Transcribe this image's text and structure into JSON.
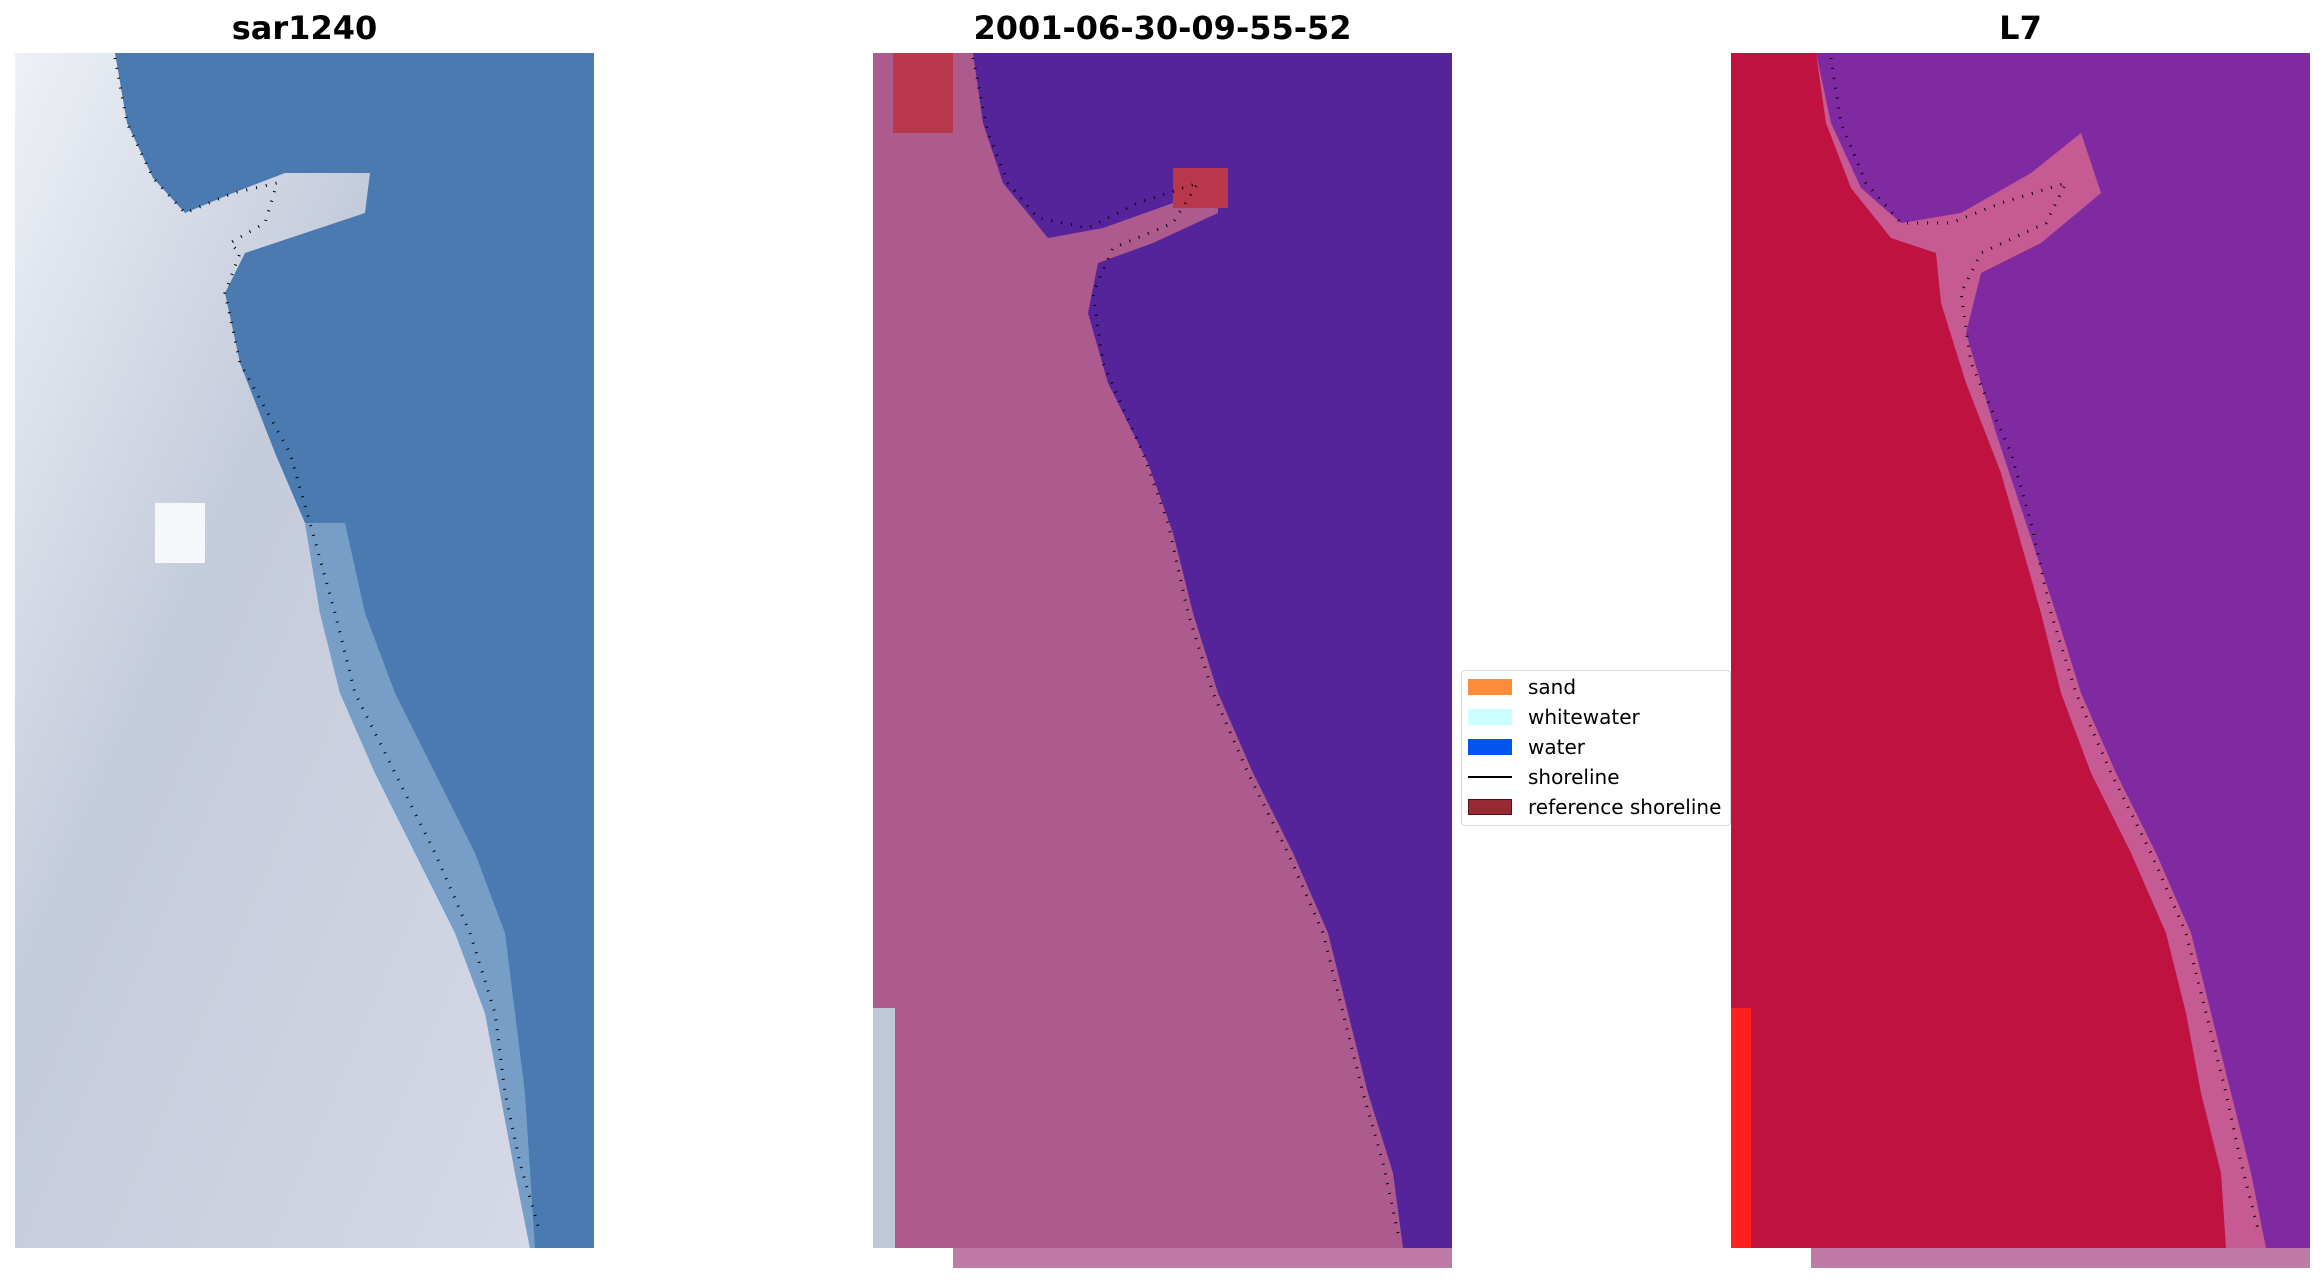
{
  "titles": {
    "left": "sar1240",
    "middle": "2001-06-30-09-55-52",
    "right": "L7"
  },
  "legend": {
    "sand": {
      "label": "sand",
      "color": "#ff8c3a"
    },
    "whitewater": {
      "label": "whitewater",
      "color": "#ccffff"
    },
    "water": {
      "label": "water",
      "color": "#0055ee"
    },
    "shoreline": {
      "label": "shoreline",
      "color": "#000000"
    },
    "reference": {
      "label": "reference shoreline",
      "color": "#992a33"
    }
  },
  "colors": {
    "left_water": "#4a7ab0",
    "left_land": "#c9cfdc",
    "middle_water": "#55249a",
    "middle_land": "#ad5a8e",
    "middle_red": "#b8374a",
    "right_water": "#7f2aa0",
    "right_land": "#bf1240",
    "right_edge": "#c65a92"
  }
}
